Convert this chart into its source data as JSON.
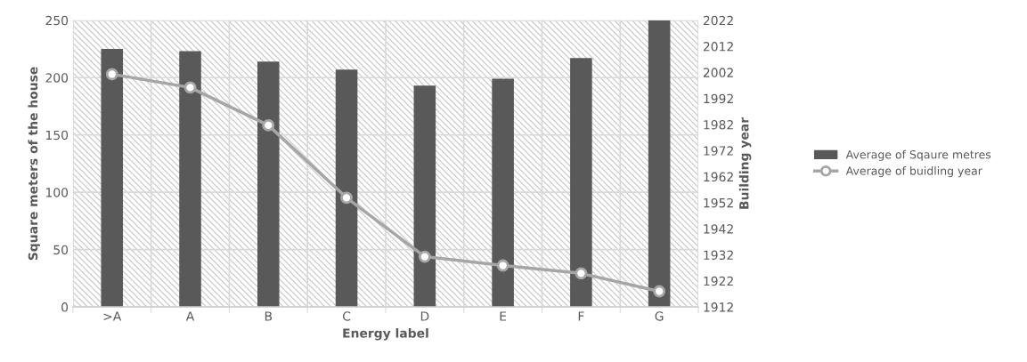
{
  "chart_data": {
    "type": "bar",
    "xlabel": "Energy label",
    "ylabel": "Square meters of the house",
    "y2label": "Building year",
    "categories": [
      ">A",
      "A",
      "B",
      "C",
      "D",
      "E",
      "F",
      "G"
    ],
    "series": [
      {
        "name": "Average of Sqaure metres",
        "color": "#595959",
        "values": [
          225,
          223,
          214,
          207,
          193,
          199,
          217,
          250
        ]
      },
      {
        "name": "Average of buidling year",
        "type": "line",
        "axis": "y2",
        "color": "#a6a6a6",
        "marker": "circle",
        "values": [
          2001.3,
          1996.2,
          1981.7,
          1953.9,
          1931.3,
          1927.9,
          1924.9,
          1918
        ]
      }
    ],
    "ylim": [
      0,
      250
    ],
    "yticks": [
      0,
      50,
      100,
      150,
      200,
      250
    ],
    "y2lim": [
      1912,
      2022
    ],
    "y2ticks": [
      1912,
      1922,
      1932,
      1942,
      1952,
      1962,
      1972,
      1982,
      1992,
      2002,
      2012,
      2022
    ],
    "grid": true,
    "legend": "right"
  }
}
